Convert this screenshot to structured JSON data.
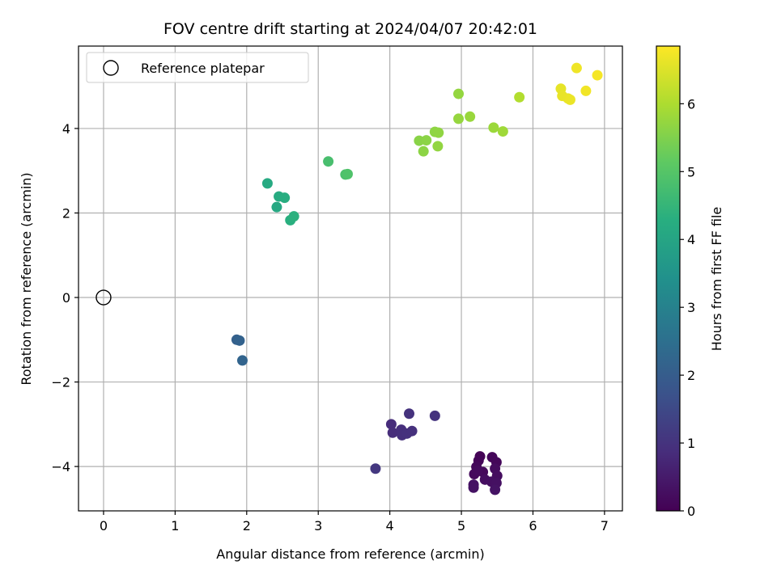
{
  "chart_data": {
    "type": "scatter",
    "title": "FOV centre drift starting at 2024/04/07 20:42:01",
    "xlabel": "Angular distance from reference (arcmin)",
    "ylabel": "Rotation from reference (arcmin)",
    "xlim": [
      -0.35,
      7.25
    ],
    "ylim": [
      -5.05,
      5.95
    ],
    "xticks": [
      0,
      1,
      2,
      3,
      4,
      5,
      6,
      7
    ],
    "xtick_labels": [
      "0",
      "1",
      "2",
      "3",
      "4",
      "5",
      "6",
      "7"
    ],
    "yticks": [
      -4,
      -2,
      0,
      2,
      4
    ],
    "ytick_labels": [
      "−4",
      "−2",
      "0",
      "2",
      "4"
    ],
    "grid": true,
    "legend": {
      "placement": "top-left",
      "entries": [
        {
          "label": "Reference platepar",
          "marker": "open-circle"
        }
      ]
    },
    "reference_point": {
      "x": 0,
      "y": 0
    },
    "colorbar": {
      "label": "Hours from first FF file",
      "colormap": "viridis",
      "range": [
        0,
        6.85
      ],
      "ticks": [
        0,
        1,
        2,
        3,
        4,
        5,
        6
      ],
      "tick_labels": [
        "0",
        "1",
        "2",
        "3",
        "4",
        "5",
        "6"
      ]
    },
    "points": [
      {
        "x": 5.26,
        "y": -3.76,
        "hours": 0.05
      },
      {
        "x": 5.24,
        "y": -3.86,
        "hours": 0.08
      },
      {
        "x": 5.43,
        "y": -3.78,
        "hours": 0.1
      },
      {
        "x": 5.49,
        "y": -3.9,
        "hours": 0.12
      },
      {
        "x": 5.21,
        "y": -4.01,
        "hours": 0.14
      },
      {
        "x": 5.3,
        "y": -4.13,
        "hours": 0.16
      },
      {
        "x": 5.18,
        "y": -4.18,
        "hours": 0.18
      },
      {
        "x": 5.23,
        "y": -4.1,
        "hours": 0.2
      },
      {
        "x": 5.47,
        "y": -4.05,
        "hours": 0.22
      },
      {
        "x": 5.5,
        "y": -4.22,
        "hours": 0.24
      },
      {
        "x": 5.33,
        "y": -4.31,
        "hours": 0.26
      },
      {
        "x": 5.42,
        "y": -4.36,
        "hours": 0.28
      },
      {
        "x": 5.49,
        "y": -4.39,
        "hours": 0.3
      },
      {
        "x": 5.17,
        "y": -4.43,
        "hours": 0.32
      },
      {
        "x": 5.17,
        "y": -4.5,
        "hours": 0.34
      },
      {
        "x": 5.47,
        "y": -4.55,
        "hours": 0.36
      },
      {
        "x": 4.02,
        "y": -3.0,
        "hours": 0.85
      },
      {
        "x": 4.04,
        "y": -3.2,
        "hours": 0.88
      },
      {
        "x": 4.16,
        "y": -3.13,
        "hours": 0.9
      },
      {
        "x": 4.17,
        "y": -3.26,
        "hours": 0.92
      },
      {
        "x": 4.24,
        "y": -3.22,
        "hours": 0.94
      },
      {
        "x": 4.31,
        "y": -3.16,
        "hours": 0.96
      },
      {
        "x": 4.27,
        "y": -2.75,
        "hours": 0.98
      },
      {
        "x": 4.63,
        "y": -2.8,
        "hours": 1.0
      },
      {
        "x": 3.8,
        "y": -4.05,
        "hours": 1.1
      },
      {
        "x": 1.86,
        "y": -1.0,
        "hours": 2.1
      },
      {
        "x": 1.9,
        "y": -1.02,
        "hours": 2.15
      },
      {
        "x": 1.94,
        "y": -1.49,
        "hours": 2.2
      },
      {
        "x": 2.42,
        "y": 2.14,
        "hours": 4.1
      },
      {
        "x": 2.29,
        "y": 2.7,
        "hours": 4.15
      },
      {
        "x": 2.45,
        "y": 2.39,
        "hours": 4.2
      },
      {
        "x": 2.53,
        "y": 2.36,
        "hours": 4.25
      },
      {
        "x": 2.61,
        "y": 1.83,
        "hours": 4.3
      },
      {
        "x": 2.66,
        "y": 1.92,
        "hours": 4.35
      },
      {
        "x": 3.14,
        "y": 3.22,
        "hours": 4.8
      },
      {
        "x": 3.38,
        "y": 2.91,
        "hours": 4.85
      },
      {
        "x": 3.41,
        "y": 2.92,
        "hours": 4.9
      },
      {
        "x": 4.41,
        "y": 3.71,
        "hours": 5.6
      },
      {
        "x": 4.51,
        "y": 3.72,
        "hours": 5.62
      },
      {
        "x": 4.47,
        "y": 3.46,
        "hours": 5.64
      },
      {
        "x": 4.63,
        "y": 3.92,
        "hours": 5.66
      },
      {
        "x": 4.68,
        "y": 3.9,
        "hours": 5.68
      },
      {
        "x": 4.67,
        "y": 3.58,
        "hours": 5.7
      },
      {
        "x": 4.96,
        "y": 4.82,
        "hours": 5.72
      },
      {
        "x": 4.96,
        "y": 4.23,
        "hours": 5.74
      },
      {
        "x": 5.12,
        "y": 4.28,
        "hours": 5.78
      },
      {
        "x": 5.45,
        "y": 4.02,
        "hours": 5.8
      },
      {
        "x": 5.58,
        "y": 3.93,
        "hours": 5.84
      },
      {
        "x": 5.81,
        "y": 4.74,
        "hours": 6.05
      },
      {
        "x": 6.39,
        "y": 4.94,
        "hours": 6.6
      },
      {
        "x": 6.41,
        "y": 4.77,
        "hours": 6.62
      },
      {
        "x": 6.49,
        "y": 4.71,
        "hours": 6.64
      },
      {
        "x": 6.52,
        "y": 4.68,
        "hours": 6.66
      },
      {
        "x": 6.61,
        "y": 5.43,
        "hours": 6.7
      },
      {
        "x": 6.74,
        "y": 4.89,
        "hours": 6.72
      },
      {
        "x": 6.9,
        "y": 5.26,
        "hours": 6.76
      }
    ]
  }
}
